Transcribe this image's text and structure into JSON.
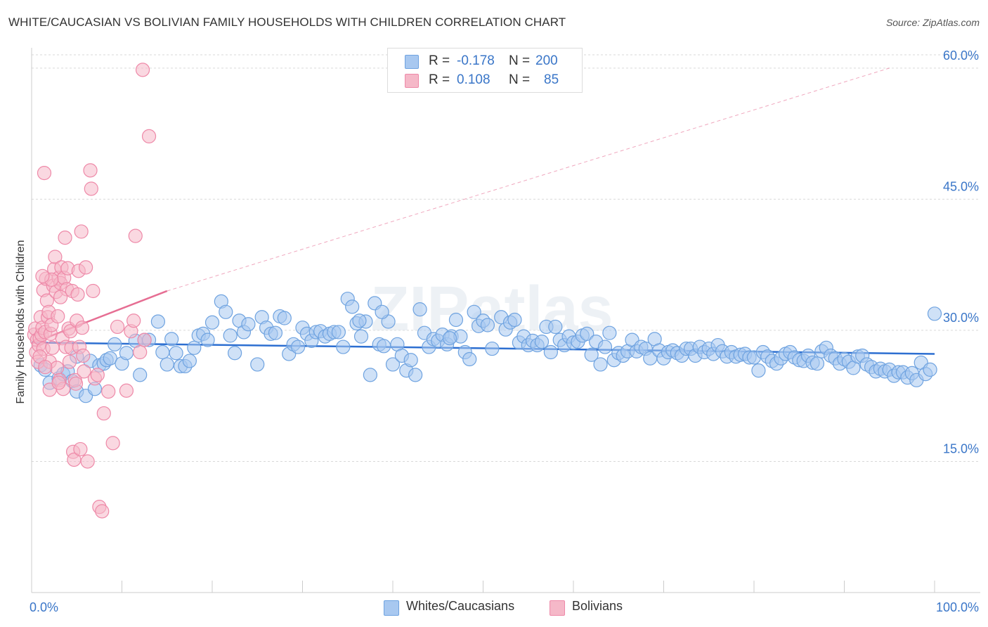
{
  "title": "WHITE/CAUCASIAN VS BOLIVIAN FAMILY HOUSEHOLDS WITH CHILDREN CORRELATION CHART",
  "source": "Source: ZipAtlas.com",
  "watermark": "ZIPatlas",
  "legend": {
    "rows": [
      {
        "r_label": "R =",
        "r_value": "-0.178",
        "n_label": "N =",
        "n_value": "200",
        "color": "#a8c8f0"
      },
      {
        "r_label": "R =",
        "r_value": "0.108",
        "n_label": "N =",
        "n_value": "85",
        "color": "#f5b8c8"
      }
    ]
  },
  "bottom_legend": [
    {
      "label": "Whites/Caucasians",
      "color": "#a8c8f0"
    },
    {
      "label": "Bolivians",
      "color": "#f5b8c8"
    }
  ],
  "chart_data": {
    "type": "scatter",
    "title": "WHITE/CAUCASIAN VS BOLIVIAN FAMILY HOUSEHOLDS WITH CHILDREN CORRELATION CHART",
    "xlabel": "",
    "ylabel": "Family Households with Children",
    "xlim": [
      0,
      100
    ],
    "ylim": [
      0,
      62
    ],
    "x_tick_labels": [
      {
        "value": 0,
        "label": "0.0%"
      },
      {
        "value": 100,
        "label": "100.0%"
      }
    ],
    "y_tick_labels": [
      {
        "value": 15,
        "label": "15.0%"
      },
      {
        "value": 30,
        "label": "30.0%"
      },
      {
        "value": 45,
        "label": "45.0%"
      },
      {
        "value": 60,
        "label": "60.0%"
      }
    ],
    "series": [
      {
        "name": "Whites/Caucasians",
        "color": "#6fa3e0",
        "fill": "#a8c8f0",
        "trend": {
          "x": [
            0,
            100
          ],
          "y": [
            28.6,
            27.3
          ],
          "color": "#2d6fd1"
        },
        "points": [
          [
            1,
            26
          ],
          [
            1.5,
            25.5
          ],
          [
            2,
            24
          ],
          [
            3,
            24.5
          ],
          [
            3.5,
            25
          ],
          [
            4,
            25.3
          ],
          [
            4.5,
            24.2
          ],
          [
            5,
            27
          ],
          [
            5,
            23
          ],
          [
            6,
            22.5
          ],
          [
            6.5,
            26.5
          ],
          [
            7,
            23.3
          ],
          [
            7.5,
            26
          ],
          [
            8,
            26.2
          ],
          [
            8.3,
            26.6
          ],
          [
            8.7,
            26.8
          ],
          [
            9.2,
            28.4
          ],
          [
            10,
            26.2
          ],
          [
            10.5,
            27.4
          ],
          [
            11.5,
            28.8
          ],
          [
            12,
            24.9
          ],
          [
            12.5,
            28.9
          ],
          [
            13,
            28.9
          ],
          [
            14,
            31
          ],
          [
            14.5,
            27.5
          ],
          [
            15,
            26.1
          ],
          [
            15.5,
            29
          ],
          [
            16,
            27.4
          ],
          [
            16.5,
            25.9
          ],
          [
            17,
            25.9
          ],
          [
            17.5,
            26.5
          ],
          [
            18,
            28
          ],
          [
            18.5,
            29.4
          ],
          [
            19,
            29.6
          ],
          [
            19.5,
            28.9
          ],
          [
            20,
            30.9
          ],
          [
            21,
            33.3
          ],
          [
            21.5,
            32.1
          ],
          [
            22,
            29.4
          ],
          [
            22.5,
            27.4
          ],
          [
            23,
            31.1
          ],
          [
            23.5,
            29.8
          ],
          [
            24,
            30.7
          ],
          [
            25,
            26.1
          ],
          [
            25.5,
            31.5
          ],
          [
            26,
            30.3
          ],
          [
            26.5,
            29.6
          ],
          [
            27,
            29.7
          ],
          [
            27.5,
            31.6
          ],
          [
            28,
            31.4
          ],
          [
            28.5,
            27.3
          ],
          [
            29,
            28.4
          ],
          [
            29.5,
            28.1
          ],
          [
            30,
            30.3
          ],
          [
            30.5,
            29.6
          ],
          [
            31,
            28.8
          ],
          [
            31.5,
            29.8
          ],
          [
            32,
            29.9
          ],
          [
            32.5,
            29.3
          ],
          [
            33,
            29.6
          ],
          [
            33.5,
            29.8
          ],
          [
            34,
            29.8
          ],
          [
            34.5,
            28.1
          ],
          [
            35,
            33.6
          ],
          [
            35.5,
            32.7
          ],
          [
            36,
            30.8
          ],
          [
            36.5,
            29.3
          ],
          [
            37,
            31
          ],
          [
            37.5,
            24.9
          ],
          [
            38,
            33.1
          ],
          [
            38.5,
            28.4
          ],
          [
            39,
            28.2
          ],
          [
            39.5,
            31
          ],
          [
            40,
            26.1
          ],
          [
            40.5,
            28.4
          ],
          [
            41,
            27.1
          ],
          [
            41.5,
            25.4
          ],
          [
            42,
            26.6
          ],
          [
            42.5,
            24.9
          ],
          [
            43,
            32.4
          ],
          [
            43.5,
            29.7
          ],
          [
            44,
            28.1
          ],
          [
            44.5,
            29
          ],
          [
            45,
            28.8
          ],
          [
            45.5,
            29.5
          ],
          [
            46,
            28.4
          ],
          [
            46.5,
            29.3
          ],
          [
            47,
            31.2
          ],
          [
            47.5,
            29.3
          ],
          [
            48,
            27.5
          ],
          [
            48.5,
            26.7
          ],
          [
            49,
            32.1
          ],
          [
            49.5,
            30.5
          ],
          [
            50,
            31.1
          ],
          [
            50.5,
            30.6
          ],
          [
            51,
            27.9
          ],
          [
            52,
            31.5
          ],
          [
            52.5,
            30.1
          ],
          [
            53,
            30.9
          ],
          [
            53.5,
            31.2
          ],
          [
            54,
            28.6
          ],
          [
            54.5,
            29.3
          ],
          [
            55,
            28.3
          ],
          [
            55.5,
            28.8
          ],
          [
            56,
            28.3
          ],
          [
            56.5,
            28.7
          ],
          [
            57,
            30.4
          ],
          [
            57.5,
            27.5
          ],
          [
            58,
            30.4
          ],
          [
            58.5,
            28.9
          ],
          [
            59,
            28.3
          ],
          [
            59.5,
            29.3
          ],
          [
            60,
            28.6
          ],
          [
            60.5,
            28.7
          ],
          [
            61,
            29.4
          ],
          [
            61.5,
            29.6
          ],
          [
            62,
            27.2
          ],
          [
            62.5,
            28.7
          ],
          [
            63,
            26.1
          ],
          [
            63.5,
            28.1
          ],
          [
            64,
            29.7
          ],
          [
            64.5,
            26.6
          ],
          [
            65,
            27.4
          ],
          [
            65.5,
            27.1
          ],
          [
            66,
            27.6
          ],
          [
            66.5,
            28.9
          ],
          [
            67,
            27.6
          ],
          [
            67.5,
            28.1
          ],
          [
            68,
            27.9
          ],
          [
            68.5,
            26.8
          ],
          [
            69,
            29
          ],
          [
            69.5,
            27.7
          ],
          [
            70,
            26.8
          ],
          [
            70.5,
            27.5
          ],
          [
            71,
            27.7
          ],
          [
            71.5,
            27.4
          ],
          [
            72,
            27.1
          ],
          [
            72.5,
            27.9
          ],
          [
            73,
            27.9
          ],
          [
            73.5,
            27.1
          ],
          [
            74,
            28.1
          ],
          [
            74.5,
            27.5
          ],
          [
            75,
            27.9
          ],
          [
            75.5,
            27.3
          ],
          [
            76,
            28.3
          ],
          [
            76.5,
            27.6
          ],
          [
            77,
            27
          ],
          [
            77.5,
            27.5
          ],
          [
            78,
            27
          ],
          [
            78.5,
            27.2
          ],
          [
            79,
            27.3
          ],
          [
            79.5,
            26.9
          ],
          [
            80,
            26.9
          ],
          [
            80.5,
            25.4
          ],
          [
            81,
            27.5
          ],
          [
            81.5,
            27
          ],
          [
            82,
            26.5
          ],
          [
            82.5,
            26.2
          ],
          [
            83,
            26.8
          ],
          [
            83.5,
            27.3
          ],
          [
            84,
            27.5
          ],
          [
            84.5,
            26.9
          ],
          [
            85,
            26.6
          ],
          [
            85.5,
            26.5
          ],
          [
            86,
            27.1
          ],
          [
            86.5,
            26.3
          ],
          [
            87,
            26.2
          ],
          [
            87.5,
            27.6
          ],
          [
            88,
            28
          ],
          [
            88.5,
            27.1
          ],
          [
            89,
            26.8
          ],
          [
            89.5,
            26.2
          ],
          [
            90,
            26.7
          ],
          [
            90.5,
            26.4
          ],
          [
            91,
            25.7
          ],
          [
            91.5,
            27
          ],
          [
            92,
            27.1
          ],
          [
            92.5,
            26.1
          ],
          [
            93,
            25.8
          ],
          [
            93.5,
            25.3
          ],
          [
            94,
            25.6
          ],
          [
            94.5,
            25.3
          ],
          [
            95,
            25.5
          ],
          [
            95.5,
            24.8
          ],
          [
            96,
            25.2
          ],
          [
            96.5,
            25.2
          ],
          [
            97,
            24.6
          ],
          [
            97.5,
            25.1
          ],
          [
            98,
            24.3
          ],
          [
            98.5,
            26.3
          ],
          [
            99,
            25
          ],
          [
            99.5,
            25.5
          ],
          [
            100,
            31.9
          ],
          [
            46.3,
            29.1
          ],
          [
            38.8,
            32.1
          ],
          [
            36.3,
            31.1
          ]
        ]
      },
      {
        "name": "Bolivians",
        "color": "#ee89a8",
        "fill": "#f5b8c8",
        "trend": {
          "x": [
            0,
            15
          ],
          "y": [
            28.5,
            34.5
          ],
          "x_dashed_end": 95,
          "y_dashed_end": 60,
          "color": "#e66e93"
        },
        "points": [
          [
            0.3,
            29.5
          ],
          [
            0.4,
            30.2
          ],
          [
            0.5,
            27.5
          ],
          [
            0.6,
            28.9
          ],
          [
            0.7,
            26.4
          ],
          [
            0.8,
            28.3
          ],
          [
            0.9,
            29.1
          ],
          [
            1,
            31.5
          ],
          [
            1.1,
            29.5
          ],
          [
            1.2,
            30.3
          ],
          [
            1.3,
            27.9
          ],
          [
            1.3,
            34.6
          ],
          [
            1.4,
            48
          ],
          [
            1.5,
            29.8
          ],
          [
            1.6,
            35.9
          ],
          [
            1.7,
            33.4
          ],
          [
            1.8,
            31.5
          ],
          [
            1.9,
            32.1
          ],
          [
            2,
            26.4
          ],
          [
            2,
            23.2
          ],
          [
            2.1,
            29.6
          ],
          [
            2.2,
            30.6
          ],
          [
            2.3,
            28
          ],
          [
            2.4,
            35.1
          ],
          [
            2.5,
            37
          ],
          [
            2.6,
            38.4
          ],
          [
            2.7,
            34.4
          ],
          [
            2.8,
            25.7
          ],
          [
            2.9,
            31.6
          ],
          [
            3,
            36
          ],
          [
            3.1,
            24.3
          ],
          [
            3.2,
            35.4
          ],
          [
            3.3,
            37.2
          ],
          [
            3.4,
            29.1
          ],
          [
            3.5,
            23.3
          ],
          [
            3.6,
            36
          ],
          [
            3.7,
            40.6
          ],
          [
            3.8,
            28.1
          ],
          [
            3.9,
            34.7
          ],
          [
            4,
            37.1
          ],
          [
            4.1,
            30.2
          ],
          [
            4.2,
            26.4
          ],
          [
            4.3,
            29.9
          ],
          [
            4.4,
            28
          ],
          [
            4.5,
            34.5
          ],
          [
            4.6,
            16.1
          ],
          [
            4.7,
            15.2
          ],
          [
            4.8,
            24.3
          ],
          [
            4.9,
            23.9
          ],
          [
            5,
            31.1
          ],
          [
            5.1,
            34.1
          ],
          [
            5.2,
            36.8
          ],
          [
            5.3,
            28.1
          ],
          [
            5.4,
            16.4
          ],
          [
            5.5,
            41.3
          ],
          [
            5.6,
            30.3
          ],
          [
            5.7,
            27.1
          ],
          [
            5.8,
            25.3
          ],
          [
            6,
            37.2
          ],
          [
            6.2,
            15
          ],
          [
            6.5,
            48.3
          ],
          [
            6.6,
            46.2
          ],
          [
            6.8,
            34.5
          ],
          [
            7,
            24.5
          ],
          [
            7.3,
            24.9
          ],
          [
            7.5,
            9.8
          ],
          [
            7.8,
            9.3
          ],
          [
            8,
            20.5
          ],
          [
            8.5,
            23
          ],
          [
            9,
            17.1
          ],
          [
            9.5,
            30.4
          ],
          [
            10.5,
            23.1
          ],
          [
            11,
            29.9
          ],
          [
            11.3,
            31.1
          ],
          [
            11.5,
            40.8
          ],
          [
            12,
            27.5
          ],
          [
            12.5,
            28.9
          ],
          [
            13,
            52.2
          ],
          [
            12.3,
            59.8
          ],
          [
            3.2,
            33.8
          ],
          [
            2.2,
            35.8
          ],
          [
            1.2,
            36.2
          ],
          [
            0.9,
            27
          ],
          [
            1.5,
            25.8
          ],
          [
            3,
            24
          ]
        ]
      }
    ]
  }
}
